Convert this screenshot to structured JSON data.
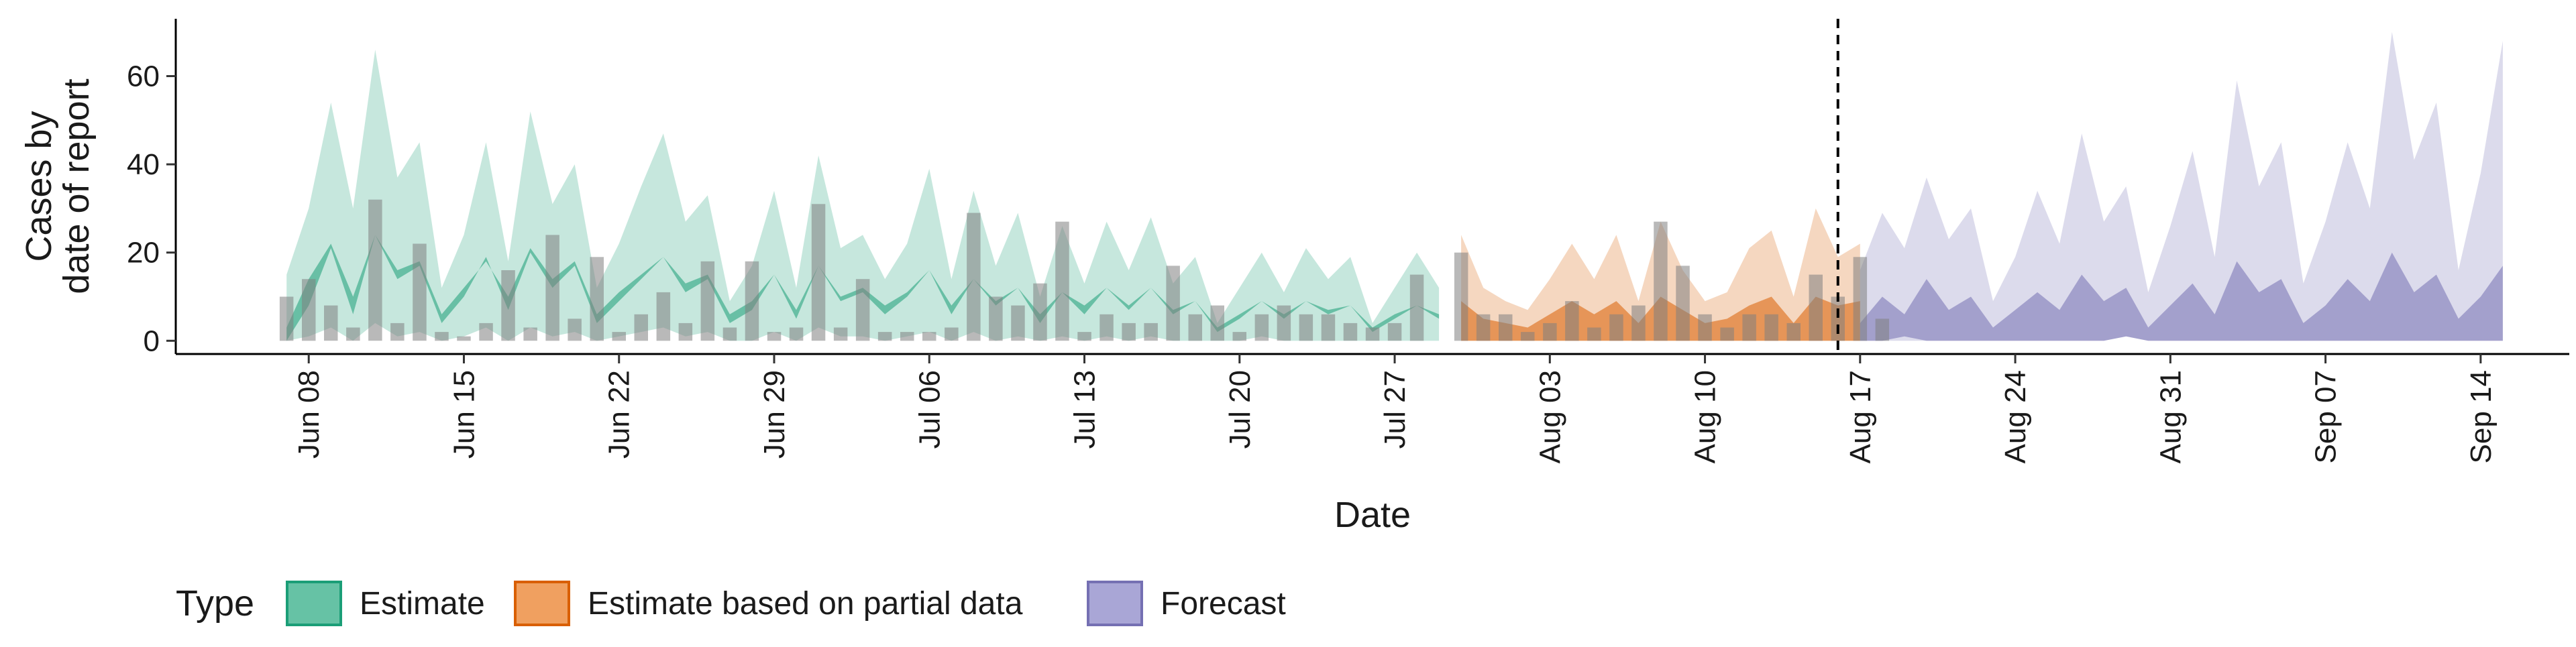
{
  "chart_data": {
    "type": "area",
    "xlabel": "Date",
    "ylabel_lines": [
      "Cases by",
      "date of report"
    ],
    "ylim": [
      -3,
      73
    ],
    "y_ticks": [
      0,
      20,
      40,
      60
    ],
    "x_domain": [
      "2020-06-02",
      "2020-09-18"
    ],
    "x_ticks": [
      {
        "date": "2020-06-08",
        "label": "Jun 08"
      },
      {
        "date": "2020-06-15",
        "label": "Jun 15"
      },
      {
        "date": "2020-06-22",
        "label": "Jun 22"
      },
      {
        "date": "2020-06-29",
        "label": "Jun 29"
      },
      {
        "date": "2020-07-06",
        "label": "Jul 06"
      },
      {
        "date": "2020-07-13",
        "label": "Jul 13"
      },
      {
        "date": "2020-07-20",
        "label": "Jul 20"
      },
      {
        "date": "2020-07-27",
        "label": "Jul 27"
      },
      {
        "date": "2020-08-03",
        "label": "Aug 03"
      },
      {
        "date": "2020-08-10",
        "label": "Aug 10"
      },
      {
        "date": "2020-08-17",
        "label": "Aug 17"
      },
      {
        "date": "2020-08-24",
        "label": "Aug 24"
      },
      {
        "date": "2020-08-31",
        "label": "Aug 31"
      },
      {
        "date": "2020-09-07",
        "label": "Sep 07"
      },
      {
        "date": "2020-09-14",
        "label": "Sep 14"
      }
    ],
    "forecast_date": "2020-08-16",
    "grid": false,
    "legend_position": "bottom",
    "legend_title": "Type",
    "series": [
      {
        "name": "Estimate",
        "color": "#1B9E77",
        "start": "2020-06-07",
        "outer_upper": [
          15,
          30,
          54,
          30,
          66,
          37,
          45,
          12,
          24,
          45,
          18,
          52,
          31,
          40,
          12,
          22,
          35,
          47,
          27,
          33,
          9,
          17,
          34,
          12,
          42,
          21,
          24,
          14,
          22,
          39,
          14,
          34,
          17,
          29,
          10,
          26,
          13,
          27,
          16,
          28,
          13,
          19,
          4,
          12,
          20,
          11,
          21,
          14,
          19,
          4,
          12,
          20,
          12
        ],
        "inner_lower": [
          0,
          8,
          21,
          6,
          24,
          14,
          17,
          4,
          10,
          19,
          7,
          20,
          12,
          17,
          4,
          9,
          14,
          19,
          11,
          14,
          4,
          7,
          15,
          5,
          17,
          9,
          11,
          6,
          10,
          16,
          6,
          14,
          8,
          12,
          4,
          11,
          6,
          12,
          7,
          12,
          6,
          9,
          2,
          5,
          9,
          5,
          9,
          6,
          8,
          2,
          5,
          8,
          5
        ],
        "inner_upper": [
          3,
          14,
          22,
          10,
          24,
          16,
          18,
          6,
          12,
          18,
          10,
          21,
          14,
          18,
          6,
          11,
          15,
          19,
          13,
          15,
          6,
          9,
          15,
          7,
          17,
          10,
          12,
          8,
          11,
          16,
          8,
          14,
          9,
          12,
          6,
          11,
          8,
          12,
          8,
          12,
          7,
          9,
          3,
          6,
          9,
          6,
          9,
          7,
          8,
          3,
          6,
          8,
          6
        ],
        "outer_lower": [
          0,
          1,
          3,
          0,
          4,
          1,
          2,
          0,
          1,
          3,
          0,
          3,
          1,
          2,
          0,
          1,
          2,
          3,
          1,
          2,
          0,
          0,
          2,
          0,
          3,
          1,
          1,
          0,
          1,
          2,
          0,
          2,
          0,
          1,
          0,
          1,
          0,
          1,
          0,
          1,
          0,
          0,
          0,
          0,
          1,
          0,
          0,
          0,
          0,
          0,
          0,
          0,
          0
        ]
      },
      {
        "name": "Estimate based on partial data",
        "color": "#D95F02",
        "start": "2020-07-30",
        "outer_upper": [
          24,
          12,
          9,
          7,
          14,
          22,
          14,
          24,
          9,
          27,
          16,
          9,
          11,
          21,
          25,
          10,
          30,
          19,
          22
        ],
        "inner_lower": [
          0,
          0,
          0,
          0,
          0,
          0,
          0,
          0,
          0,
          0,
          0,
          0,
          0,
          0,
          0,
          0,
          0,
          0,
          0
        ],
        "inner_upper": [
          9,
          5,
          4,
          3,
          6,
          9,
          6,
          9,
          4,
          10,
          7,
          4,
          5,
          8,
          10,
          4,
          10,
          8,
          9
        ],
        "outer_lower": [
          0,
          0,
          0,
          0,
          0,
          0,
          0,
          0,
          0,
          0,
          0,
          0,
          0,
          0,
          0,
          0,
          0,
          0,
          0
        ]
      },
      {
        "name": "Forecast",
        "color": "#7570B3",
        "start": "2020-08-17",
        "outer_upper": [
          16,
          29,
          21,
          37,
          23,
          30,
          9,
          19,
          34,
          22,
          47,
          27,
          35,
          11,
          26,
          43,
          19,
          59,
          35,
          45,
          13,
          27,
          45,
          30,
          70,
          41,
          54,
          16,
          38,
          68
        ],
        "inner_lower": [
          0,
          0,
          1,
          0,
          0,
          0,
          0,
          0,
          0,
          0,
          0,
          0,
          1,
          0,
          0,
          0,
          0,
          0,
          0,
          0,
          0,
          0,
          0,
          0,
          0,
          0,
          0,
          0,
          0,
          0
        ],
        "inner_upper": [
          4,
          10,
          6,
          14,
          7,
          10,
          3,
          7,
          11,
          7,
          15,
          9,
          12,
          3,
          8,
          13,
          6,
          18,
          11,
          14,
          4,
          8,
          14,
          9,
          20,
          11,
          15,
          5,
          10,
          17
        ],
        "outer_lower": [
          0,
          0,
          0,
          0,
          0,
          0,
          0,
          0,
          0,
          0,
          0,
          0,
          1,
          0,
          0,
          0,
          0,
          0,
          0,
          0,
          0,
          0,
          0,
          0,
          0,
          0,
          0,
          0,
          0,
          0
        ]
      }
    ],
    "bars": {
      "color": "#7f7f7f",
      "start": "2020-06-07",
      "values": [
        10,
        14,
        8,
        3,
        32,
        4,
        22,
        2,
        1,
        4,
        16,
        3,
        24,
        5,
        19,
        2,
        6,
        11,
        4,
        18,
        3,
        18,
        2,
        3,
        31,
        3,
        14,
        2,
        2,
        2,
        3,
        29,
        10,
        8,
        13,
        27,
        2,
        6,
        4,
        4,
        17,
        6,
        8,
        2,
        6,
        8,
        6,
        6,
        4,
        3,
        4,
        15,
        0,
        20,
        6,
        6,
        2,
        4,
        9,
        3,
        6,
        8,
        27,
        17,
        6,
        3,
        6,
        6,
        4,
        15,
        10,
        19,
        5
      ]
    }
  },
  "legend": {
    "title": "Type",
    "items": [
      {
        "label": "Estimate",
        "fill": "#66C2A5",
        "stroke": "#1B9E77"
      },
      {
        "label": "Estimate based on partial data",
        "fill": "#F0A060",
        "stroke": "#D95F02"
      },
      {
        "label": "Forecast",
        "fill": "#A9A6D6",
        "stroke": "#7570B3"
      }
    ]
  }
}
